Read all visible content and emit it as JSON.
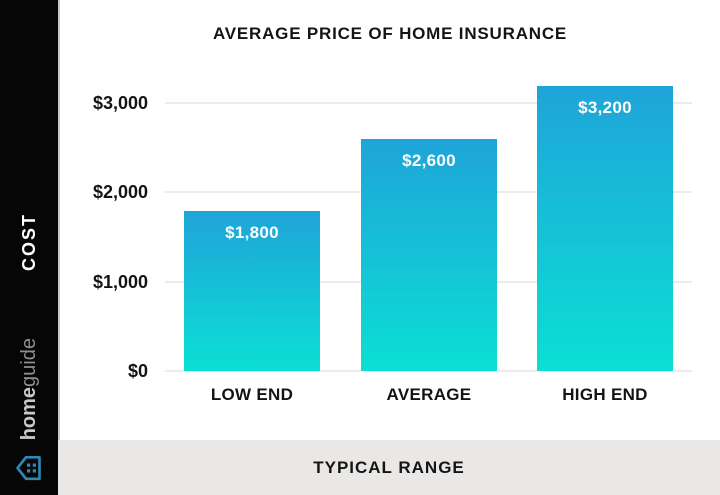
{
  "sidebar": {
    "axis_label": "COST",
    "brand_home": "home",
    "brand_guide": "guide"
  },
  "chart": {
    "title": "AVERAGE PRICE OF HOME INSURANCE",
    "y_ticks": [
      "$3,000",
      "$2,000",
      "$1,000",
      "$0"
    ],
    "bars": [
      {
        "category": "LOW END",
        "value_label": "$1,800"
      },
      {
        "category": "AVERAGE",
        "value_label": "$2,600"
      },
      {
        "category": "HIGH END",
        "value_label": "$3,200"
      }
    ]
  },
  "footer": {
    "label": "TYPICAL RANGE"
  },
  "colors": {
    "bar_gradient_top": "#1fa4d9",
    "bar_gradient_bottom": "#0bdfd4",
    "sidebar_bg": "#060606",
    "footer_bg": "#e9e8e7",
    "icon_stroke": "#2d89b3"
  },
  "chart_data": {
    "type": "bar",
    "title": "AVERAGE PRICE OF HOME INSURANCE",
    "categories": [
      "LOW END",
      "AVERAGE",
      "HIGH END"
    ],
    "values": [
      1800,
      2600,
      3200
    ],
    "bar_labels": [
      "$1,800",
      "$2,600",
      "$3,200"
    ],
    "xlabel": "TYPICAL RANGE",
    "ylabel": "COST",
    "ylim": [
      0,
      3200
    ],
    "yticks": [
      0,
      1000,
      2000,
      3000
    ],
    "ytick_labels": [
      "$0",
      "$1,000",
      "$2,000",
      "$3,000"
    ],
    "grid": true,
    "legend": false,
    "bar_color": "blue-to-cyan vertical gradient"
  }
}
